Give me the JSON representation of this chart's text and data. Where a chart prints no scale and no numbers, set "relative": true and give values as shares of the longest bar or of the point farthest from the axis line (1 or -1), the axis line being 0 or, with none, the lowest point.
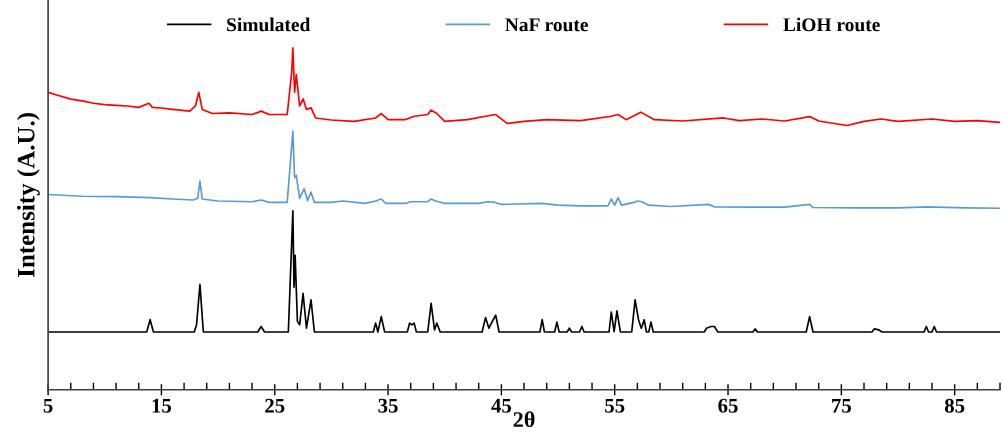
{
  "chart_data": {
    "type": "line",
    "relative": true,
    "xlabel": "2θ",
    "ylabel": "Intensity (A.U.)",
    "legend": "top",
    "grid": false,
    "marker": "none",
    "line_style": "solid",
    "xlim": [
      5,
      89
    ],
    "xticks": [
      5,
      {
        "value": 7,
        "label": null
      },
      {
        "value": 9,
        "label": null
      },
      {
        "value": 11,
        "label": null
      },
      {
        "value": 13,
        "label": null
      },
      15,
      {
        "value": 17,
        "label": null
      },
      {
        "value": 19,
        "label": null
      },
      {
        "value": 21,
        "label": null
      },
      {
        "value": 23,
        "label": null
      },
      25,
      {
        "value": 27,
        "label": null
      },
      {
        "value": 29,
        "label": null
      },
      {
        "value": 31,
        "label": null
      },
      {
        "value": 33,
        "label": null
      },
      35,
      {
        "value": 37,
        "label": null
      },
      {
        "value": 39,
        "label": null
      },
      {
        "value": 41,
        "label": null
      },
      {
        "value": 43,
        "label": null
      },
      45,
      {
        "value": 47,
        "label": null
      },
      {
        "value": 49,
        "label": null
      },
      {
        "value": 51,
        "label": null
      },
      {
        "value": 53,
        "label": null
      },
      55,
      {
        "value": 57,
        "label": null
      },
      {
        "value": 59,
        "label": null
      },
      {
        "value": 61,
        "label": null
      },
      {
        "value": 63,
        "label": null
      },
      65,
      {
        "value": 67,
        "label": null
      },
      {
        "value": 69,
        "label": null
      },
      {
        "value": 71,
        "label": null
      },
      {
        "value": 73,
        "label": null
      },
      75,
      {
        "value": 77,
        "label": null
      },
      {
        "value": 79,
        "label": null
      },
      {
        "value": 81,
        "label": null
      },
      {
        "value": 83,
        "label": null
      },
      85,
      {
        "value": 87,
        "label": null
      },
      {
        "value": 89,
        "label": null
      }
    ],
    "tick_labels": "x",
    "series": [
      {
        "name": "Simulated",
        "color": "#000000",
        "x": [
          5,
          13.7,
          14.0,
          14.3,
          17.9,
          18.1,
          18.4,
          18.7,
          23.5,
          23.8,
          24.1,
          26.2,
          26.6,
          26.7,
          26.8,
          27.0,
          27.2,
          27.5,
          27.8,
          28.2,
          28.5,
          33.7,
          33.9,
          34.1,
          34.4,
          34.7,
          36.7,
          36.9,
          37.1,
          37.3,
          37.5,
          38.5,
          38.8,
          39.1,
          39.3,
          39.6,
          43.3,
          43.6,
          43.9,
          44.2,
          44.5,
          44.8,
          48.4,
          48.6,
          48.8,
          49.7,
          49.9,
          50.1,
          50.8,
          51.0,
          51.2,
          51.9,
          52.1,
          52.3,
          54.5,
          54.7,
          54.95,
          55.2,
          55.5,
          56.5,
          56.8,
          57.1,
          57.35,
          57.6,
          57.8,
          58.0,
          58.2,
          58.4,
          62.9,
          63.1,
          63.5,
          63.8,
          64.1,
          67.2,
          67.4,
          67.6,
          71.9,
          72.2,
          72.5,
          77.7,
          77.9,
          78.3,
          78.6,
          82.3,
          82.5,
          82.7,
          83.0,
          83.2,
          83.4,
          89
        ],
        "values": [
          0.169,
          0.169,
          0.205,
          0.169,
          0.169,
          0.19,
          0.308,
          0.169,
          0.169,
          0.185,
          0.169,
          0.169,
          0.523,
          0.3,
          0.393,
          0.2,
          0.19,
          0.282,
          0.18,
          0.263,
          0.169,
          0.169,
          0.195,
          0.169,
          0.214,
          0.169,
          0.169,
          0.195,
          0.19,
          0.195,
          0.169,
          0.169,
          0.253,
          0.175,
          0.195,
          0.169,
          0.169,
          0.211,
          0.18,
          0.2,
          0.218,
          0.169,
          0.169,
          0.205,
          0.169,
          0.169,
          0.198,
          0.169,
          0.169,
          0.18,
          0.169,
          0.169,
          0.185,
          0.169,
          0.169,
          0.227,
          0.17,
          0.231,
          0.169,
          0.169,
          0.263,
          0.205,
          0.18,
          0.205,
          0.169,
          0.169,
          0.198,
          0.169,
          0.169,
          0.18,
          0.185,
          0.185,
          0.169,
          0.169,
          0.178,
          0.169,
          0.169,
          0.214,
          0.169,
          0.169,
          0.178,
          0.175,
          0.169,
          0.169,
          0.185,
          0.169,
          0.169,
          0.185,
          0.169,
          0.169
        ]
      },
      {
        "name": "NaF route",
        "color": "#5b9bd5",
        "x": [
          5,
          8,
          11,
          14,
          16,
          17.8,
          18.2,
          18.4,
          18.6,
          20,
          23,
          23.8,
          24.5,
          26.1,
          26.6,
          26.75,
          26.9,
          27.2,
          27.6,
          27.9,
          28.2,
          28.5,
          30,
          31,
          33,
          33.9,
          34.4,
          34.8,
          36.5,
          37,
          38.5,
          38.8,
          39.2,
          40,
          43,
          43.8,
          44.3,
          45,
          48.6,
          50,
          52,
          54.4,
          54.7,
          55.0,
          55.3,
          55.6,
          56.7,
          57.0,
          57.4,
          58,
          60,
          63.3,
          63.8,
          67,
          70,
          72.2,
          72.5,
          76,
          80,
          82.5,
          86,
          89
        ],
        "values": [
          0.571,
          0.566,
          0.565,
          0.562,
          0.558,
          0.555,
          0.56,
          0.61,
          0.558,
          0.552,
          0.55,
          0.555,
          0.548,
          0.548,
          0.756,
          0.62,
          0.627,
          0.56,
          0.588,
          0.553,
          0.578,
          0.548,
          0.548,
          0.552,
          0.545,
          0.552,
          0.558,
          0.545,
          0.545,
          0.55,
          0.55,
          0.558,
          0.552,
          0.545,
          0.545,
          0.55,
          0.549,
          0.542,
          0.545,
          0.54,
          0.538,
          0.538,
          0.558,
          0.54,
          0.562,
          0.54,
          0.548,
          0.552,
          0.55,
          0.54,
          0.536,
          0.542,
          0.535,
          0.534,
          0.534,
          0.542,
          0.533,
          0.532,
          0.532,
          0.535,
          0.532,
          0.531
        ]
      },
      {
        "name": "LiOH route",
        "color": "#ff0000",
        "x": [
          5,
          6,
          7,
          8,
          9,
          10,
          11,
          12,
          13,
          13.9,
          14.2,
          15,
          16,
          17.5,
          18.0,
          18.3,
          18.6,
          19.5,
          21,
          23,
          23.8,
          24.5,
          26.1,
          26.5,
          26.6,
          26.75,
          26.9,
          27.2,
          27.5,
          27.8,
          28.2,
          28.6,
          30,
          32,
          33.9,
          34.4,
          35,
          36.5,
          37.3,
          38.5,
          38.8,
          39.3,
          40,
          42,
          43.6,
          44.5,
          45.5,
          47,
          49,
          52,
          54.7,
          55.3,
          56,
          57.3,
          58.5,
          61,
          64.6,
          66,
          68,
          70,
          72.2,
          73,
          75.5,
          77,
          78.5,
          80,
          83,
          85,
          87,
          89
        ],
        "values": [
          0.87,
          0.86,
          0.85,
          0.845,
          0.838,
          0.834,
          0.832,
          0.83,
          0.826,
          0.838,
          0.826,
          0.824,
          0.82,
          0.815,
          0.83,
          0.87,
          0.82,
          0.808,
          0.81,
          0.805,
          0.815,
          0.805,
          0.805,
          0.93,
          1.0,
          0.87,
          0.922,
          0.83,
          0.851,
          0.82,
          0.825,
          0.795,
          0.789,
          0.785,
          0.795,
          0.808,
          0.79,
          0.79,
          0.8,
          0.805,
          0.818,
          0.808,
          0.785,
          0.79,
          0.8,
          0.805,
          0.779,
          0.785,
          0.79,
          0.787,
          0.8,
          0.805,
          0.79,
          0.812,
          0.79,
          0.786,
          0.795,
          0.787,
          0.792,
          0.786,
          0.799,
          0.786,
          0.773,
          0.785,
          0.792,
          0.785,
          0.792,
          0.785,
          0.787,
          0.782
        ]
      }
    ]
  }
}
